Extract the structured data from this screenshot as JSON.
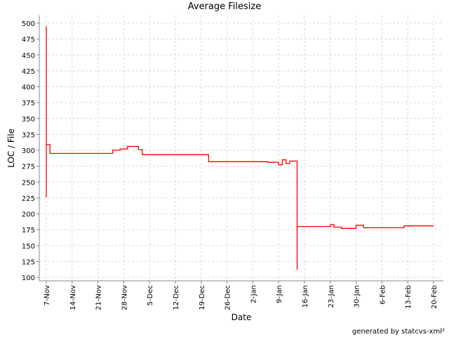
{
  "footer": "generated by statcvs-xml²",
  "chart_data": {
    "type": "line",
    "step": true,
    "title": "Average Filesize",
    "xlabel": "Date",
    "ylabel": "LOC / File",
    "ylim": [
      95,
      515
    ],
    "yticks": [
      100,
      125,
      150,
      175,
      200,
      225,
      250,
      275,
      300,
      325,
      350,
      375,
      400,
      425,
      450,
      475,
      500
    ],
    "xticks": [
      "7-Nov",
      "14-Nov",
      "21-Nov",
      "28-Nov",
      "5-Dec",
      "12-Dec",
      "19-Dec",
      "26-Dec",
      "2-Jan",
      "9-Jan",
      "16-Jan",
      "23-Jan",
      "30-Jan",
      "6-Feb",
      "13-Feb",
      "20-Feb"
    ],
    "grid": true,
    "line_color": "#ff0000",
    "series": [
      {
        "points": [
          [
            "7-Nov",
            495
          ],
          [
            "7-Nov",
            226
          ],
          [
            "7-Nov",
            309
          ],
          [
            "8-Nov",
            295
          ],
          [
            "25-Nov",
            300
          ],
          [
            "27-Nov",
            302
          ],
          [
            "29-Nov",
            306
          ],
          [
            "2-Dec",
            301
          ],
          [
            "3-Dec",
            293
          ],
          [
            "21-Dec",
            282
          ],
          [
            "6-Jan",
            281
          ],
          [
            "9-Jan",
            277
          ],
          [
            "10-Jan",
            285
          ],
          [
            "11-Jan",
            279
          ],
          [
            "12-Jan",
            283
          ],
          [
            "14-Jan",
            112
          ],
          [
            "14-Jan",
            180
          ],
          [
            "23-Jan",
            183
          ],
          [
            "24-Jan",
            179
          ],
          [
            "26-Jan",
            177
          ],
          [
            "30-Jan",
            182
          ],
          [
            "1-Feb",
            178
          ],
          [
            "12-Feb",
            181
          ],
          [
            "20-Feb",
            181
          ]
        ]
      }
    ]
  }
}
